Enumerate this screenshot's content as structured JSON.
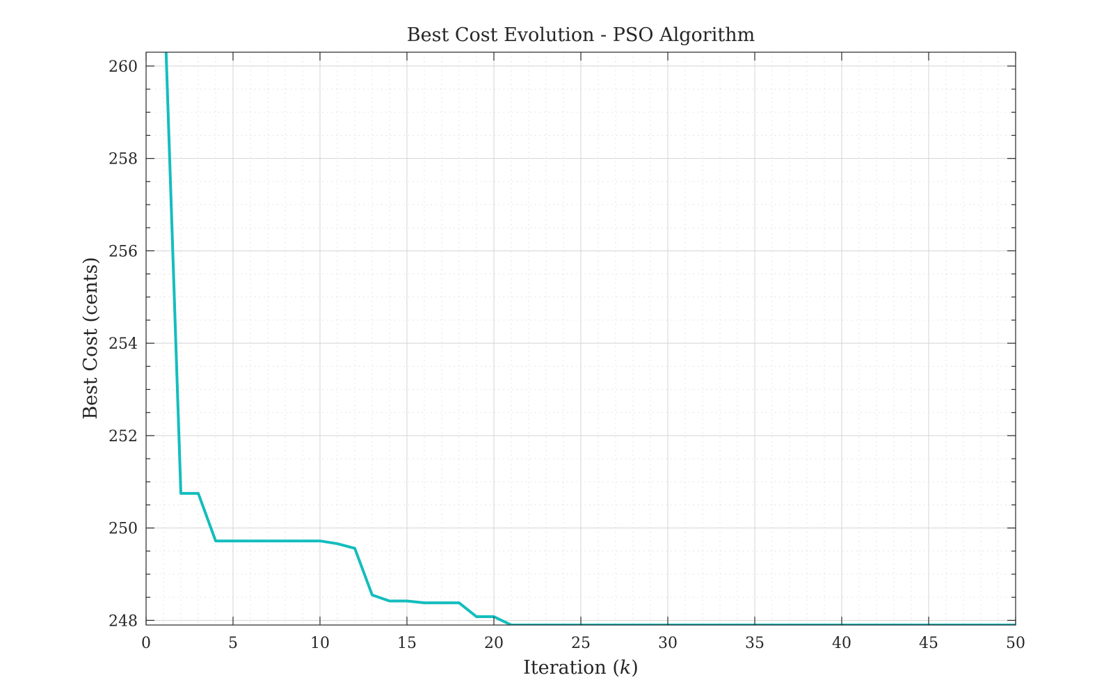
{
  "chart_data": {
    "type": "line",
    "title": "Best Cost Evolution - PSO Algorithm",
    "xlabel_prefix": "Iteration (",
    "xlabel_var": "k",
    "xlabel_suffix": ")",
    "ylabel": "Best Cost (cents)",
    "xlim": [
      0,
      50
    ],
    "ylim": [
      247.9,
      260.3
    ],
    "xticks": [
      0,
      5,
      10,
      15,
      20,
      25,
      30,
      35,
      40,
      45,
      50
    ],
    "yticks": [
      248,
      250,
      252,
      254,
      256,
      258,
      260
    ],
    "x_minor_step": 1,
    "y_minor_step": 0.5,
    "grid": true,
    "minor_grid": true,
    "series_color": "#14bdbd",
    "series": [
      {
        "x": [
          1,
          2,
          3,
          4,
          5,
          6,
          7,
          8,
          9,
          10,
          11,
          12,
          13,
          14,
          15,
          16,
          17,
          18,
          19,
          20,
          21,
          22,
          23,
          24,
          25,
          26,
          27,
          28,
          29,
          30,
          31,
          32,
          33,
          34,
          35,
          36,
          37,
          38,
          39,
          40,
          41,
          42,
          43,
          44,
          45,
          46,
          47,
          48,
          49,
          50
        ],
        "y": [
          262.0,
          250.75,
          250.75,
          249.72,
          249.72,
          249.72,
          249.72,
          249.72,
          249.72,
          249.72,
          249.66,
          249.56,
          248.55,
          248.42,
          248.42,
          248.38,
          248.38,
          248.38,
          248.08,
          248.08,
          247.9,
          247.9,
          247.9,
          247.9,
          247.9,
          247.9,
          247.9,
          247.9,
          247.9,
          247.9,
          247.9,
          247.9,
          247.9,
          247.9,
          247.9,
          247.9,
          247.9,
          247.9,
          247.9,
          247.9,
          247.9,
          247.9,
          247.9,
          247.9,
          247.9,
          247.9,
          247.9,
          247.9,
          247.9,
          247.9
        ]
      }
    ]
  }
}
